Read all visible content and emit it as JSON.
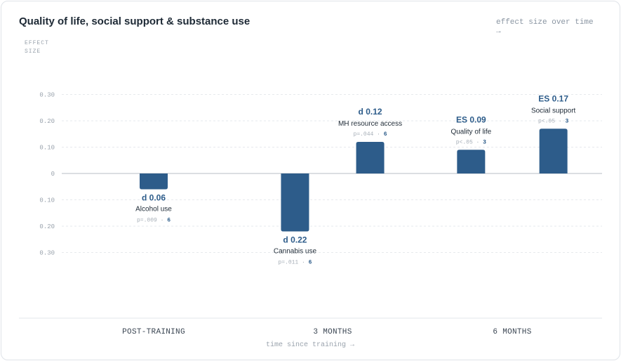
{
  "title": "Quality of life, social support & substance use",
  "corner_note": "effect size over time →",
  "chart_data": {
    "type": "bar",
    "title": "Quality of life, social support & substance use",
    "ylabel": "EFFECT SIZE",
    "xlabel": "time since training →",
    "y_ticks": [
      "0.30",
      "0.20",
      "0.10",
      "0",
      "0.10",
      "0.20",
      "0.30"
    ],
    "ylim": [
      -0.3,
      0.3
    ],
    "grid": true,
    "categories": [
      "POST-TRAINING",
      "3 MONTHS",
      "6 MONTHS"
    ],
    "bars": [
      {
        "category": "POST-TRAINING",
        "label": "Alcohol use",
        "value": -0.06,
        "value_label": "d 0.06",
        "p": "p=.009",
        "n": "6",
        "position": 0.0
      },
      {
        "category": "3 MONTHS",
        "label": "Cannabis use",
        "value": -0.22,
        "value_label": "d 0.22",
        "p": "p=.011",
        "n": "6",
        "position": -0.21
      },
      {
        "category": "3 MONTHS",
        "label": "MH resource access",
        "value": 0.12,
        "value_label": "d 0.12",
        "p": "p=.044",
        "n": "6",
        "position": 0.21
      },
      {
        "category": "6 MONTHS",
        "label": "Quality of life",
        "value": 0.09,
        "value_label": "ES 0.09",
        "p": "p<.05",
        "n": "3",
        "position": -0.23
      },
      {
        "category": "6 MONTHS",
        "label": "Social support",
        "value": 0.17,
        "value_label": "ES 0.17",
        "p": "p<.05",
        "n": "3",
        "position": 0.23
      }
    ]
  }
}
